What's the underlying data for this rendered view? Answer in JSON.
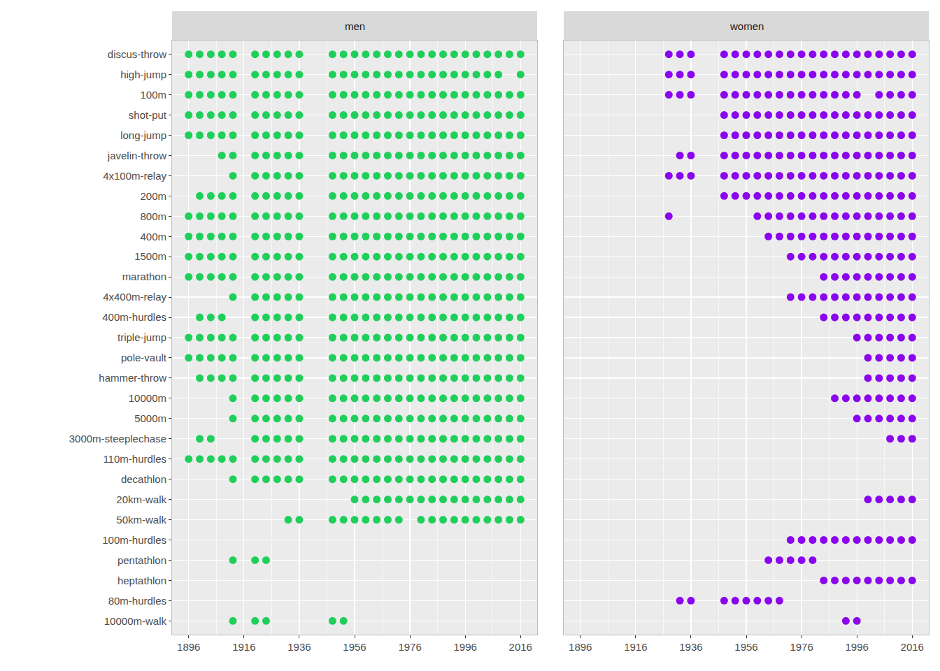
{
  "chart_data": [
    {
      "type": "scatter",
      "title": "men",
      "color": "#1fcf5a",
      "marker": "circle",
      "grid": true,
      "xlim": [
        1890,
        2022
      ],
      "xticks": [
        1896,
        1916,
        1936,
        1956,
        1976,
        1996,
        2016
      ],
      "categories": [
        "discus-throw",
        "high-jump",
        "100m",
        "shot-put",
        "long-jump",
        "javelin-throw",
        "4x100m-relay",
        "200m",
        "800m",
        "400m",
        "1500m",
        "marathon",
        "4x400m-relay",
        "400m-hurdles",
        "triple-jump",
        "pole-vault",
        "hammer-throw",
        "10000m",
        "5000m",
        "3000m-steeplechase",
        "110m-hurdles",
        "decathlon",
        "20km-walk",
        "50km-walk",
        "100m-hurdles",
        "pentathlon",
        "heptathlon",
        "80m-hurdles",
        "10000m-walk"
      ],
      "values": [
        [
          1896,
          1900,
          1904,
          1908,
          1912,
          1920,
          1924,
          1928,
          1932,
          1936,
          1948,
          1952,
          1956,
          1960,
          1964,
          1968,
          1972,
          1976,
          1980,
          1984,
          1988,
          1992,
          1996,
          2000,
          2004,
          2008,
          2012,
          2016
        ],
        [
          1896,
          1900,
          1904,
          1908,
          1912,
          1920,
          1924,
          1928,
          1932,
          1936,
          1948,
          1952,
          1956,
          1960,
          1964,
          1968,
          1972,
          1976,
          1980,
          1984,
          1988,
          1992,
          1996,
          2000,
          2004,
          2008,
          2016
        ],
        [
          1896,
          1900,
          1904,
          1908,
          1912,
          1920,
          1924,
          1928,
          1932,
          1936,
          1948,
          1952,
          1956,
          1960,
          1964,
          1968,
          1972,
          1976,
          1980,
          1984,
          1988,
          1992,
          1996,
          2000,
          2004,
          2008,
          2012,
          2016
        ],
        [
          1896,
          1900,
          1904,
          1908,
          1912,
          1920,
          1924,
          1928,
          1932,
          1936,
          1948,
          1952,
          1956,
          1960,
          1964,
          1968,
          1972,
          1976,
          1980,
          1984,
          1988,
          1992,
          1996,
          2000,
          2004,
          2008,
          2012,
          2016
        ],
        [
          1896,
          1900,
          1904,
          1908,
          1912,
          1920,
          1924,
          1928,
          1932,
          1936,
          1948,
          1952,
          1956,
          1960,
          1964,
          1968,
          1972,
          1976,
          1980,
          1984,
          1988,
          1992,
          1996,
          2000,
          2004,
          2008,
          2012,
          2016
        ],
        [
          1908,
          1912,
          1920,
          1924,
          1928,
          1932,
          1936,
          1948,
          1952,
          1956,
          1960,
          1964,
          1968,
          1972,
          1976,
          1980,
          1984,
          1988,
          1992,
          1996,
          2000,
          2004,
          2008,
          2012,
          2016
        ],
        [
          1912,
          1920,
          1924,
          1928,
          1932,
          1936,
          1948,
          1952,
          1956,
          1960,
          1964,
          1968,
          1972,
          1976,
          1980,
          1984,
          1988,
          1992,
          1996,
          2000,
          2004,
          2008,
          2012,
          2016
        ],
        [
          1900,
          1904,
          1908,
          1912,
          1920,
          1924,
          1928,
          1932,
          1936,
          1948,
          1952,
          1956,
          1960,
          1964,
          1968,
          1972,
          1976,
          1980,
          1984,
          1988,
          1992,
          1996,
          2000,
          2004,
          2008,
          2012,
          2016
        ],
        [
          1896,
          1900,
          1904,
          1908,
          1912,
          1920,
          1924,
          1928,
          1932,
          1936,
          1948,
          1952,
          1956,
          1960,
          1964,
          1968,
          1972,
          1976,
          1980,
          1984,
          1988,
          1992,
          1996,
          2000,
          2004,
          2008,
          2012,
          2016
        ],
        [
          1896,
          1900,
          1904,
          1908,
          1912,
          1920,
          1924,
          1928,
          1932,
          1936,
          1948,
          1952,
          1956,
          1960,
          1964,
          1968,
          1972,
          1976,
          1980,
          1984,
          1988,
          1992,
          1996,
          2000,
          2004,
          2008,
          2012,
          2016
        ],
        [
          1896,
          1900,
          1904,
          1908,
          1912,
          1920,
          1924,
          1928,
          1932,
          1936,
          1948,
          1952,
          1956,
          1960,
          1964,
          1968,
          1972,
          1976,
          1980,
          1984,
          1988,
          1992,
          1996,
          2000,
          2004,
          2008,
          2012,
          2016
        ],
        [
          1896,
          1900,
          1904,
          1908,
          1912,
          1920,
          1924,
          1928,
          1932,
          1936,
          1948,
          1952,
          1956,
          1960,
          1964,
          1968,
          1972,
          1976,
          1980,
          1984,
          1988,
          1992,
          1996,
          2000,
          2004,
          2008,
          2012,
          2016
        ],
        [
          1912,
          1920,
          1924,
          1928,
          1932,
          1936,
          1948,
          1952,
          1956,
          1960,
          1964,
          1968,
          1972,
          1976,
          1980,
          1984,
          1988,
          1992,
          1996,
          2000,
          2004,
          2008,
          2012,
          2016
        ],
        [
          1900,
          1904,
          1908,
          1920,
          1924,
          1928,
          1932,
          1936,
          1948,
          1952,
          1956,
          1960,
          1964,
          1968,
          1972,
          1976,
          1980,
          1984,
          1988,
          1992,
          1996,
          2000,
          2004,
          2008,
          2012,
          2016
        ],
        [
          1896,
          1900,
          1904,
          1908,
          1912,
          1920,
          1924,
          1928,
          1932,
          1936,
          1948,
          1952,
          1956,
          1960,
          1964,
          1968,
          1972,
          1976,
          1980,
          1984,
          1988,
          1992,
          1996,
          2000,
          2004,
          2008,
          2012,
          2016
        ],
        [
          1896,
          1900,
          1904,
          1908,
          1912,
          1920,
          1924,
          1928,
          1932,
          1936,
          1948,
          1952,
          1956,
          1960,
          1964,
          1968,
          1972,
          1976,
          1980,
          1984,
          1988,
          1992,
          1996,
          2000,
          2004,
          2008,
          2012,
          2016
        ],
        [
          1900,
          1904,
          1908,
          1912,
          1920,
          1924,
          1928,
          1932,
          1936,
          1948,
          1952,
          1956,
          1960,
          1964,
          1968,
          1972,
          1976,
          1980,
          1984,
          1988,
          1992,
          1996,
          2000,
          2004,
          2008,
          2012,
          2016
        ],
        [
          1912,
          1920,
          1924,
          1928,
          1932,
          1936,
          1948,
          1952,
          1956,
          1960,
          1964,
          1968,
          1972,
          1976,
          1980,
          1984,
          1988,
          1992,
          1996,
          2000,
          2004,
          2008,
          2012,
          2016
        ],
        [
          1912,
          1920,
          1924,
          1928,
          1932,
          1936,
          1948,
          1952,
          1956,
          1960,
          1964,
          1968,
          1972,
          1976,
          1980,
          1984,
          1988,
          1992,
          1996,
          2000,
          2004,
          2008,
          2012,
          2016
        ],
        [
          1900,
          1904,
          1920,
          1924,
          1928,
          1932,
          1936,
          1948,
          1952,
          1956,
          1960,
          1964,
          1968,
          1972,
          1976,
          1980,
          1984,
          1988,
          1992,
          1996,
          2000,
          2004,
          2008,
          2012,
          2016
        ],
        [
          1896,
          1900,
          1904,
          1908,
          1912,
          1920,
          1924,
          1928,
          1932,
          1936,
          1948,
          1952,
          1956,
          1960,
          1964,
          1968,
          1972,
          1976,
          1980,
          1984,
          1988,
          1992,
          1996,
          2000,
          2004,
          2008,
          2012,
          2016
        ],
        [
          1912,
          1920,
          1924,
          1928,
          1932,
          1936,
          1948,
          1952,
          1956,
          1960,
          1964,
          1968,
          1972,
          1976,
          1980,
          1984,
          1988,
          1992,
          1996,
          2000,
          2004,
          2008,
          2012,
          2016
        ],
        [
          1956,
          1960,
          1964,
          1968,
          1972,
          1976,
          1980,
          1984,
          1988,
          1992,
          1996,
          2000,
          2004,
          2008,
          2012,
          2016
        ],
        [
          1932,
          1936,
          1948,
          1952,
          1956,
          1960,
          1964,
          1968,
          1972,
          1980,
          1984,
          1988,
          1992,
          1996,
          2000,
          2004,
          2008,
          2012,
          2016
        ],
        [],
        [
          1912,
          1920,
          1924
        ],
        [],
        [],
        [
          1912,
          1920,
          1924,
          1948,
          1952
        ]
      ]
    },
    {
      "type": "scatter",
      "title": "women",
      "color": "#8a05ee",
      "marker": "circle",
      "grid": true,
      "tick_labels": "x",
      "xlim": [
        1890,
        2022
      ],
      "xticks": [
        1896,
        1916,
        1936,
        1956,
        1976,
        1996,
        2016
      ],
      "categories": [
        "discus-throw",
        "high-jump",
        "100m",
        "shot-put",
        "long-jump",
        "javelin-throw",
        "4x100m-relay",
        "200m",
        "800m",
        "400m",
        "1500m",
        "marathon",
        "4x400m-relay",
        "400m-hurdles",
        "triple-jump",
        "pole-vault",
        "hammer-throw",
        "10000m",
        "5000m",
        "3000m-steeplechase",
        "110m-hurdles",
        "decathlon",
        "20km-walk",
        "50km-walk",
        "100m-hurdles",
        "pentathlon",
        "heptathlon",
        "80m-hurdles",
        "10000m-walk"
      ],
      "values": [
        [
          1928,
          1932,
          1936,
          1948,
          1952,
          1956,
          1960,
          1964,
          1968,
          1972,
          1976,
          1980,
          1984,
          1988,
          1992,
          1996,
          2000,
          2004,
          2008,
          2012,
          2016
        ],
        [
          1928,
          1932,
          1936,
          1948,
          1952,
          1956,
          1960,
          1964,
          1968,
          1972,
          1976,
          1980,
          1984,
          1988,
          1992,
          1996,
          2000,
          2004,
          2008,
          2012,
          2016
        ],
        [
          1928,
          1932,
          1936,
          1948,
          1952,
          1956,
          1960,
          1964,
          1968,
          1972,
          1976,
          1980,
          1984,
          1988,
          1992,
          1996,
          2004,
          2008,
          2012,
          2016
        ],
        [
          1948,
          1952,
          1956,
          1960,
          1964,
          1968,
          1972,
          1976,
          1980,
          1984,
          1988,
          1992,
          1996,
          2000,
          2004,
          2008,
          2012,
          2016
        ],
        [
          1948,
          1952,
          1956,
          1960,
          1964,
          1968,
          1972,
          1976,
          1980,
          1984,
          1988,
          1992,
          1996,
          2000,
          2004,
          2008,
          2012,
          2016
        ],
        [
          1932,
          1936,
          1948,
          1952,
          1956,
          1960,
          1964,
          1968,
          1972,
          1976,
          1980,
          1984,
          1988,
          1992,
          1996,
          2000,
          2004,
          2008,
          2012,
          2016
        ],
        [
          1928,
          1932,
          1936,
          1948,
          1952,
          1956,
          1960,
          1964,
          1968,
          1972,
          1976,
          1980,
          1984,
          1988,
          1992,
          1996,
          2000,
          2004,
          2008,
          2012,
          2016
        ],
        [
          1948,
          1952,
          1956,
          1960,
          1964,
          1968,
          1972,
          1976,
          1980,
          1984,
          1988,
          1992,
          1996,
          2000,
          2004,
          2008,
          2012,
          2016
        ],
        [
          1928,
          1960,
          1964,
          1968,
          1972,
          1976,
          1980,
          1984,
          1988,
          1992,
          1996,
          2000,
          2004,
          2008,
          2012,
          2016
        ],
        [
          1964,
          1968,
          1972,
          1976,
          1980,
          1984,
          1988,
          1992,
          1996,
          2000,
          2004,
          2008,
          2012,
          2016
        ],
        [
          1972,
          1976,
          1980,
          1984,
          1988,
          1992,
          1996,
          2000,
          2004,
          2008,
          2012,
          2016
        ],
        [
          1984,
          1988,
          1992,
          1996,
          2000,
          2004,
          2008,
          2012,
          2016
        ],
        [
          1972,
          1976,
          1980,
          1984,
          1988,
          1992,
          1996,
          2000,
          2004,
          2008,
          2012,
          2016
        ],
        [
          1984,
          1988,
          1992,
          1996,
          2000,
          2004,
          2008,
          2012,
          2016
        ],
        [
          1996,
          2000,
          2004,
          2008,
          2012,
          2016
        ],
        [
          2000,
          2004,
          2008,
          2012,
          2016
        ],
        [
          2000,
          2004,
          2008,
          2012,
          2016
        ],
        [
          1988,
          1992,
          1996,
          2000,
          2004,
          2008,
          2012,
          2016
        ],
        [
          1996,
          2000,
          2004,
          2008,
          2012,
          2016
        ],
        [
          2008,
          2012,
          2016
        ],
        [],
        [],
        [
          2000,
          2004,
          2008,
          2012,
          2016
        ],
        [],
        [
          1972,
          1976,
          1980,
          1984,
          1988,
          1992,
          1996,
          2000,
          2004,
          2008,
          2012,
          2016
        ],
        [
          1964,
          1968,
          1972,
          1976,
          1980
        ],
        [
          1984,
          1988,
          1992,
          1996,
          2000,
          2004,
          2008,
          2012,
          2016
        ],
        [
          1932,
          1936,
          1948,
          1952,
          1956,
          1960,
          1964,
          1968
        ],
        [
          1992,
          1996
        ]
      ]
    }
  ]
}
